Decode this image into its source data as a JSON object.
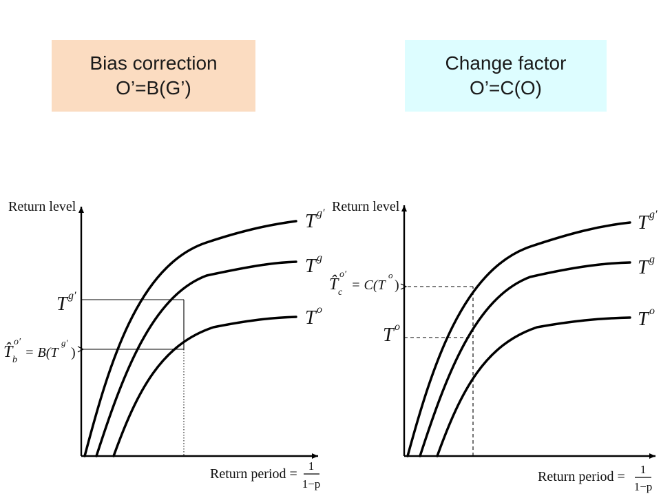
{
  "left_panel": {
    "title_line1": "Bias correction",
    "title_line2": "O’=B(G’)",
    "box_color": "#fbdcc1",
    "y_axis_label": "Return level",
    "x_axis_label": "Return period =",
    "fraction_num": "1",
    "fraction_den": "1−p",
    "curve_labels": [
      "T",
      "T",
      "T"
    ],
    "curve_sups": [
      "g′",
      "g",
      "o"
    ],
    "marker_upper": {
      "base": "T",
      "sup": "g′"
    },
    "marker_lower": {
      "base": "T̂",
      "sub": "b",
      "sup": "o′",
      "rhs": "= B(T",
      "rhs_sup": "g′",
      "rhs_end": ")"
    }
  },
  "right_panel": {
    "title_line1": "Change factor",
    "title_line2": "O’=C(O)",
    "box_color": "#ddfdff",
    "y_axis_label": "Return level",
    "x_axis_label": "Return period =",
    "fraction_num": "1",
    "fraction_den": "1−p",
    "curve_labels": [
      "T",
      "T",
      "T"
    ],
    "curve_sups": [
      "g′",
      "g",
      "o"
    ],
    "marker_upper": {
      "base": "T̂",
      "sub": "c",
      "sup": "o′",
      "rhs": "= C(T",
      "rhs_sup": "o",
      "rhs_end": ")"
    },
    "marker_lower": {
      "base": "T",
      "sup": "o"
    }
  }
}
